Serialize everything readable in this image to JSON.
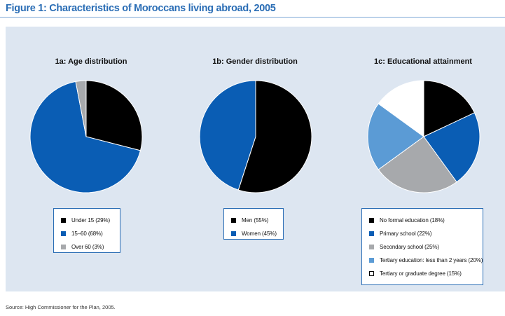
{
  "figure_title": "Figure 1: Characteristics of Moroccans living abroad, 2005",
  "source": "Source: High Commissioner for the Plan, 2005.",
  "chart_data": [
    {
      "type": "pie",
      "title": "1a: Age distribution",
      "slices": [
        {
          "label": "Under 15 (29%)",
          "value": 29,
          "color": "#000000"
        },
        {
          "label": "15–60 (68%)",
          "value": 68,
          "color": "#0a5db4"
        },
        {
          "label": "Over 60 (3%)",
          "value": 3,
          "color": "#a7a9ac"
        }
      ]
    },
    {
      "type": "pie",
      "title": "1b: Gender distribution",
      "slices": [
        {
          "label": "Men (55%)",
          "value": 55,
          "color": "#000000"
        },
        {
          "label": "Women (45%)",
          "value": 45,
          "color": "#0a5db4"
        }
      ]
    },
    {
      "type": "pie",
      "title": "1c: Educational attainment",
      "slices": [
        {
          "label": "No formal education (18%)",
          "value": 18,
          "color": "#000000"
        },
        {
          "label": "Primary school (22%)",
          "value": 22,
          "color": "#0a5db4"
        },
        {
          "label": "Secondary school (25%)",
          "value": 25,
          "color": "#a7a9ac"
        },
        {
          "label": "Tertiary education: less than 2 years (20%)",
          "value": 20,
          "color": "#5b9bd5"
        },
        {
          "label": "Tertiary or graduate degree (15%)",
          "value": 15,
          "color": "#ffffff"
        }
      ]
    }
  ]
}
